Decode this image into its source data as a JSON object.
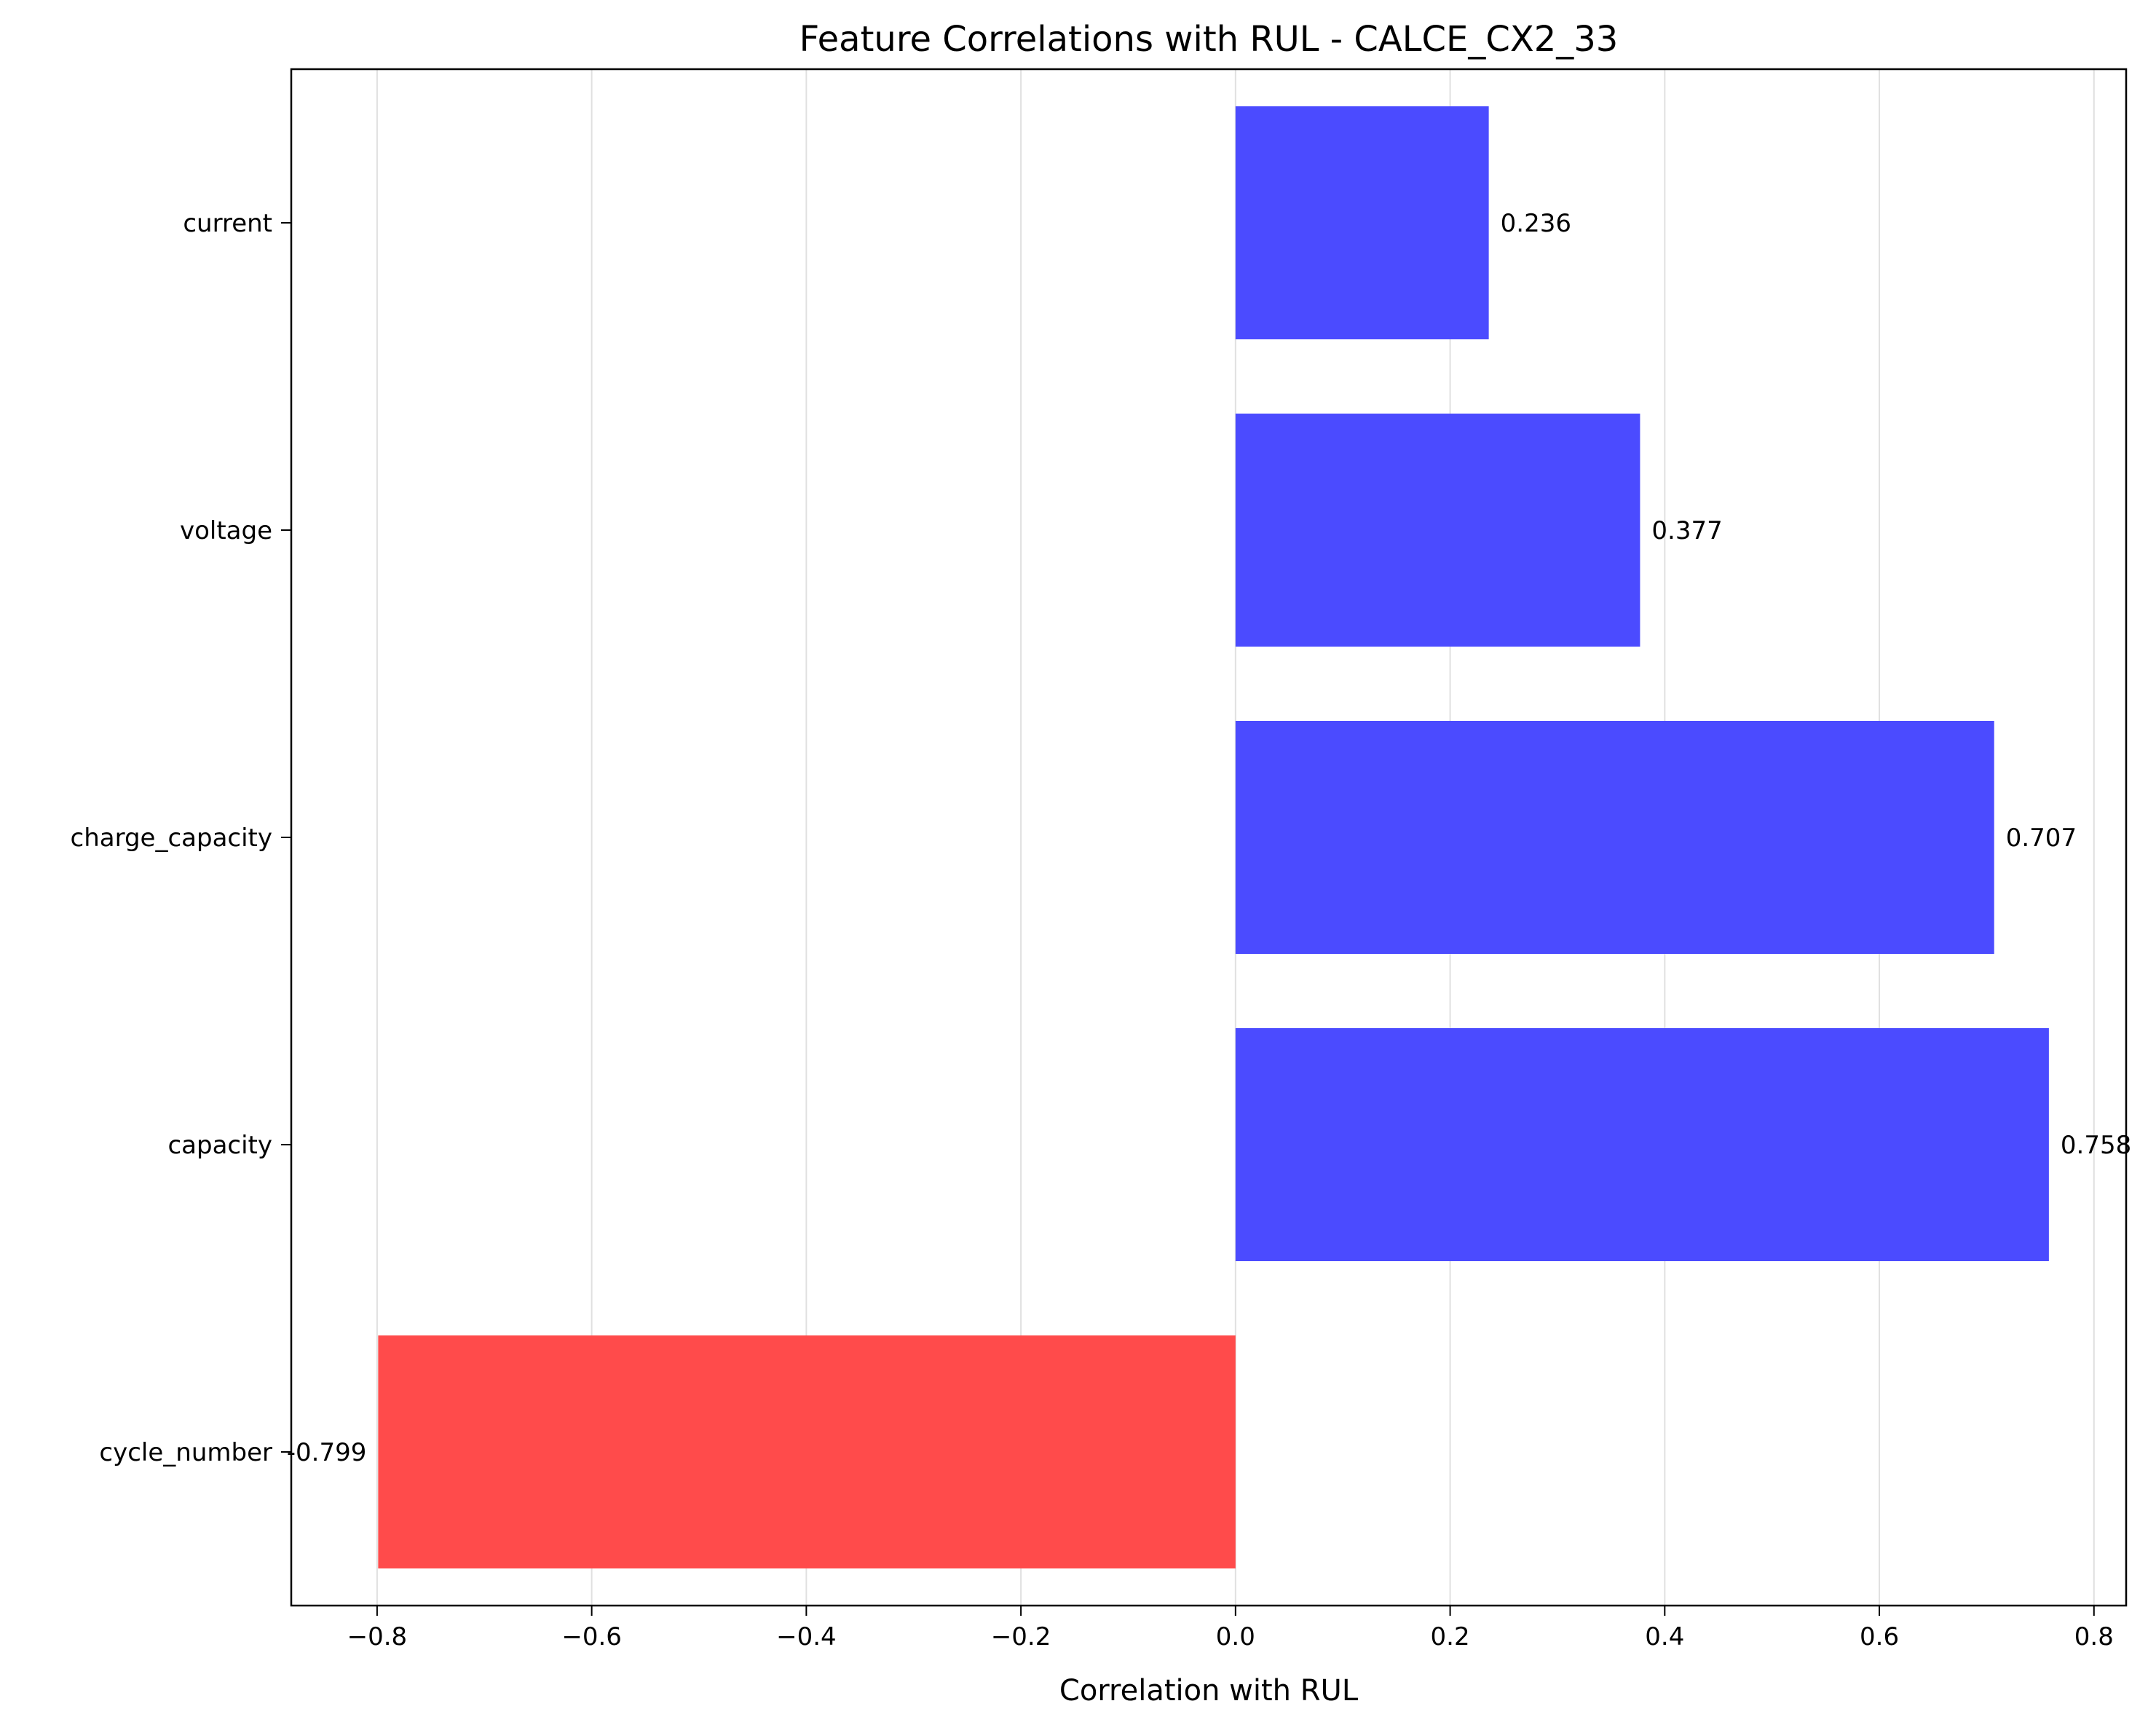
{
  "chart_data": {
    "type": "bar",
    "orientation": "horizontal",
    "title": "Feature Correlations with RUL - CALCE_CX2_33",
    "xlabel": "Correlation with RUL",
    "ylabel": "",
    "xlim": [
      -0.88,
      0.83
    ],
    "xticks": [
      -0.8,
      -0.6,
      -0.4,
      -0.2,
      0.0,
      0.2,
      0.4,
      0.6,
      0.8
    ],
    "xtick_labels": [
      "−0.8",
      "−0.6",
      "−0.4",
      "−0.2",
      "0.0",
      "0.2",
      "0.4",
      "0.6",
      "0.8"
    ],
    "grid": "vertical",
    "categories": [
      "current",
      "voltage",
      "charge_capacity",
      "capacity",
      "cycle_number"
    ],
    "values": [
      0.236,
      0.377,
      0.707,
      0.758,
      -0.799
    ],
    "value_labels": [
      "0.236",
      "0.377",
      "0.707",
      "0.758",
      "-0.799"
    ],
    "colors": {
      "positive": "#4b4bff",
      "negative": "#ff4b4b",
      "grid": "#e0e0e0",
      "axis": "#000000"
    }
  }
}
